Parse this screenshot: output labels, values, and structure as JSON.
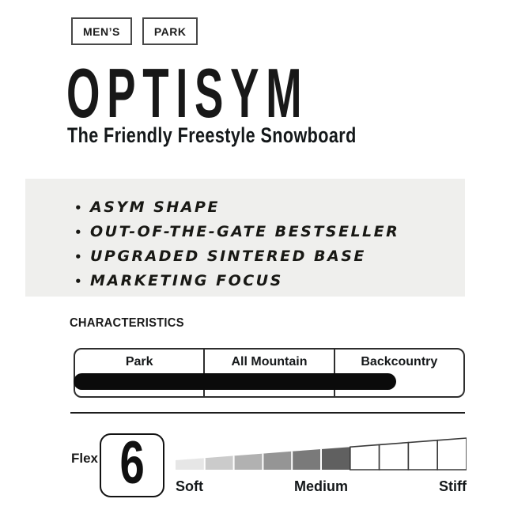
{
  "tags": [
    {
      "label": "MEN’S"
    },
    {
      "label": "PARK"
    }
  ],
  "title": "OPTISYM",
  "subtitle": "The Friendly Freestyle Snowboard",
  "highlights": [
    "ASYM SHAPE",
    "OUT-OF-THE-GATE BESTSELLER",
    "UPGRADED SINTERED BASE",
    "MARKETING FOCUS"
  ],
  "characteristics": {
    "heading": "CHARACTERISTICS",
    "categories": [
      "Park",
      "All Mountain",
      "Backcountry"
    ],
    "bar": {
      "percent": 83,
      "color": "#0b0b0b"
    }
  },
  "flex": {
    "label": "Flex",
    "value": "6",
    "scale_labels": [
      "Soft",
      "Medium",
      "Stiff"
    ],
    "segments_total": 10,
    "segments_filled": 6,
    "filled_colors": [
      "#e6e6e6",
      "#cbcbcb",
      "#b1b1b1",
      "#959595",
      "#7a7a7a",
      "#606060"
    ],
    "empty_fill": "#ffffff",
    "empty_stroke": "#3a3a3a",
    "separator_color": "#ffffff"
  },
  "colors": {
    "panel_bg": "#efefed",
    "text": "#1a1a1a",
    "border": "#2e2e2e"
  }
}
